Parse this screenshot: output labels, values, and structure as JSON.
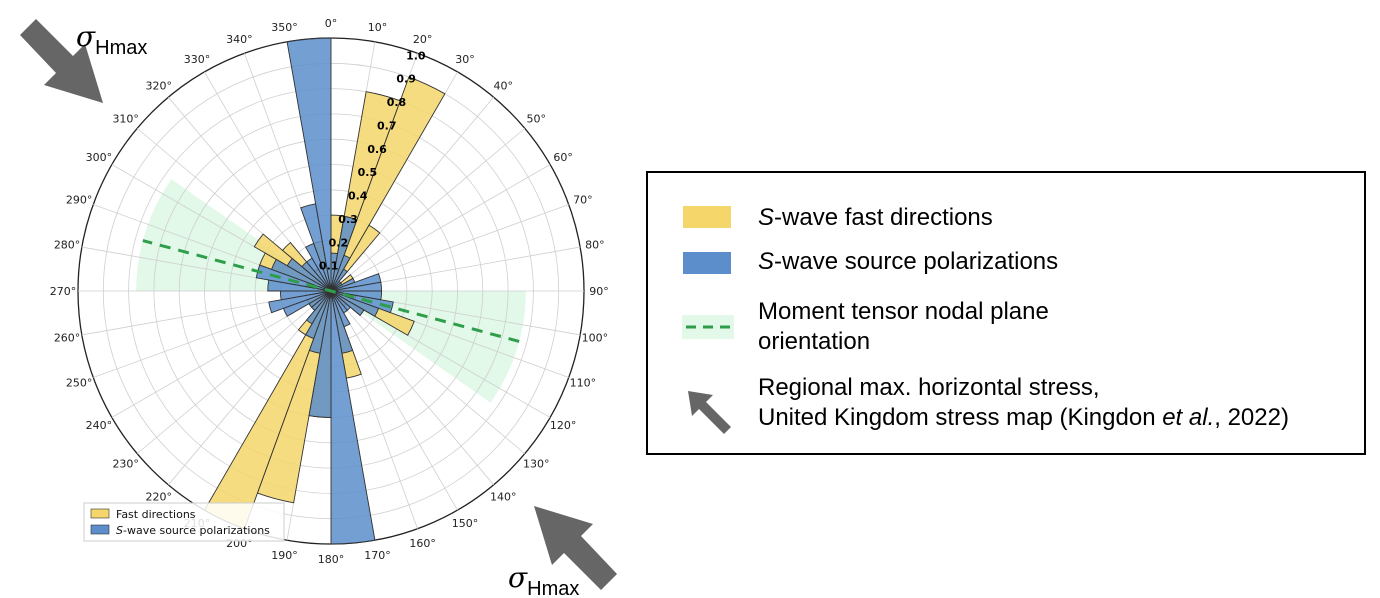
{
  "chart_data": {
    "type": "rose",
    "angle_unit": "degrees",
    "theta_direction": "clockwise",
    "theta_zero": "north",
    "radial_max": 1.0,
    "radial_ticks": [
      "0.1",
      "0.2",
      "0.3",
      "0.4",
      "0.5",
      "0.6",
      "0.7",
      "0.8",
      "0.9",
      "1.0"
    ],
    "radial_tick_values": [
      0.1,
      0.2,
      0.3,
      0.4,
      0.5,
      0.6,
      0.7,
      0.8,
      0.9,
      1.0
    ],
    "theta_tick_values": [
      0,
      10,
      20,
      30,
      40,
      50,
      60,
      70,
      80,
      90,
      100,
      110,
      120,
      130,
      140,
      150,
      160,
      170,
      180,
      190,
      200,
      210,
      220,
      230,
      240,
      250,
      260,
      270,
      280,
      290,
      300,
      310,
      320,
      330,
      340,
      350
    ],
    "theta_ticks": [
      "0°",
      "10°",
      "20°",
      "30°",
      "40°",
      "50°",
      "60°",
      "70°",
      "80°",
      "90°",
      "100°",
      "110°",
      "120°",
      "130°",
      "140°",
      "150°",
      "160°",
      "170°",
      "180°",
      "190°",
      "200°",
      "210°",
      "220°",
      "230°",
      "240°",
      "250°",
      "260°",
      "270°",
      "280°",
      "290°",
      "300°",
      "310°",
      "320°",
      "330°",
      "340°",
      "350°"
    ],
    "grid": true,
    "series": [
      {
        "name": "Fast directions",
        "color": "#f5d66a",
        "bins": [
          {
            "center": 5,
            "value": 0.3
          },
          {
            "center": 15,
            "value": 0.8
          },
          {
            "center": 25,
            "value": 0.9
          },
          {
            "center": 35,
            "value": 0.3
          },
          {
            "center": 55,
            "value": 0.1
          },
          {
            "center": 65,
            "value": 0.05
          },
          {
            "center": 105,
            "value": 0.1
          },
          {
            "center": 115,
            "value": 0.35
          },
          {
            "center": 125,
            "value": 0.15
          },
          {
            "center": 135,
            "value": 0.08
          },
          {
            "center": 165,
            "value": 0.35
          },
          {
            "center": 185,
            "value": 0.5
          },
          {
            "center": 195,
            "value": 0.85
          },
          {
            "center": 205,
            "value": 1.0
          },
          {
            "center": 215,
            "value": 0.2
          },
          {
            "center": 225,
            "value": 0.1
          },
          {
            "center": 235,
            "value": 0.1
          },
          {
            "center": 245,
            "value": 0.1
          },
          {
            "center": 285,
            "value": 0.1
          },
          {
            "center": 295,
            "value": 0.3
          },
          {
            "center": 305,
            "value": 0.35
          },
          {
            "center": 315,
            "value": 0.25
          },
          {
            "center": 325,
            "value": 0.1
          },
          {
            "center": 345,
            "value": 0.2
          }
        ]
      },
      {
        "name": "S-wave source polarizations",
        "color": "#5b8ecb",
        "bins": [
          {
            "center": 5,
            "value": 0.15
          },
          {
            "center": 15,
            "value": 0.3
          },
          {
            "center": 25,
            "value": 0.15
          },
          {
            "center": 35,
            "value": 0.1
          },
          {
            "center": 45,
            "value": 0.05
          },
          {
            "center": 55,
            "value": 0.05
          },
          {
            "center": 65,
            "value": 0.1
          },
          {
            "center": 75,
            "value": 0.2
          },
          {
            "center": 85,
            "value": 0.2
          },
          {
            "center": 95,
            "value": 0.2
          },
          {
            "center": 105,
            "value": 0.25
          },
          {
            "center": 115,
            "value": 0.2
          },
          {
            "center": 125,
            "value": 0.15
          },
          {
            "center": 135,
            "value": 0.1
          },
          {
            "center": 145,
            "value": 0.1
          },
          {
            "center": 155,
            "value": 0.15
          },
          {
            "center": 165,
            "value": 0.25
          },
          {
            "center": 175,
            "value": 1.0
          },
          {
            "center": 185,
            "value": 0.5
          },
          {
            "center": 195,
            "value": 0.25
          },
          {
            "center": 205,
            "value": 0.2
          },
          {
            "center": 215,
            "value": 0.15
          },
          {
            "center": 225,
            "value": 0.1
          },
          {
            "center": 235,
            "value": 0.1
          },
          {
            "center": 245,
            "value": 0.2
          },
          {
            "center": 255,
            "value": 0.25
          },
          {
            "center": 265,
            "value": 0.2
          },
          {
            "center": 275,
            "value": 0.25
          },
          {
            "center": 285,
            "value": 0.3
          },
          {
            "center": 295,
            "value": 0.25
          },
          {
            "center": 305,
            "value": 0.2
          },
          {
            "center": 315,
            "value": 0.15
          },
          {
            "center": 325,
            "value": 0.15
          },
          {
            "center": 335,
            "value": 0.2
          },
          {
            "center": 345,
            "value": 0.35
          },
          {
            "center": 355,
            "value": 1.0
          }
        ]
      }
    ],
    "nodal_plane": {
      "azimuth": 105,
      "wedges": [
        {
          "from": 90,
          "to": 125
        },
        {
          "from": 270,
          "to": 305
        }
      ],
      "wedge_color": "#e2f8e8",
      "line_color": "#2e9e4a"
    },
    "stress_arrows": {
      "azimuth_from": 315,
      "azimuth_to": 135,
      "color": "#666666",
      "label_symbol": "σ",
      "label_sub": "Hmax"
    },
    "inner_legend": {
      "placement": "lower-left",
      "items": [
        {
          "label": "Fast directions",
          "color": "#f5d66a"
        },
        {
          "label": "S-wave source polarizations",
          "color": "#5b8ecb"
        }
      ],
      "label_texts": [
        "Fast directions",
        "-wave source polarizations"
      ],
      "label_prefix": "S"
    }
  },
  "legend": {
    "items": [
      {
        "key": "fast",
        "italic": "S",
        "text": "-wave fast directions",
        "color": "#f5d66a"
      },
      {
        "key": "source",
        "italic": "S",
        "text": "-wave source polarizations",
        "color": "#5b8ecb"
      },
      {
        "key": "nodal",
        "text_line1": "Moment tensor nodal plane",
        "text_line2": "orientation",
        "color": "#2e9e4a"
      },
      {
        "key": "stress",
        "text_line1": "Regional max. horizontal stress,",
        "text_line2_a": "United Kingdom stress map (Kingdon ",
        "text_line2_italic": "et al.",
        "text_line2_b": ", 2022)",
        "color": "#666666"
      }
    ]
  }
}
